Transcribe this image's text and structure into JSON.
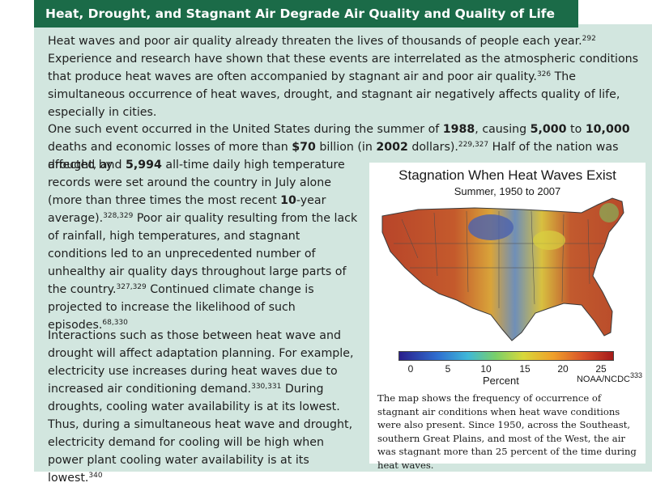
{
  "title": "Heat, Drought, and Stagnant Air Degrade Air Quality and Quality of Life",
  "p1": {
    "a": "Heat waves and poor air quality already threaten the lives of thousands of people each year.",
    "ref1": "292",
    "b": " Experience and research have shown that these events are interrelated as the atmospheric conditions that produce heat waves are often accompanied by stagnant air and poor air quality.",
    "ref2": "326",
    "c": " The simultaneous occurrence of heat waves, drought, and stagnant air negatively affects quality of life, especially in cities."
  },
  "p2": {
    "a": "One such event occurred in the United States during the summer of ",
    "year": "1988",
    "b": ", causing ",
    "deaths": "5,000",
    "c": " to ",
    "deaths2": "10,000",
    "d": " deaths and economic losses of more than ",
    "losses": "$70",
    "e": " billion (in ",
    "dollars_year": "2002",
    "f": " dollars).",
    "ref1": "229,327",
    "g": " Half of the nation was affected by",
    "h": "drought, and ",
    "records": "5,994",
    "i": " all-time daily high temperature records were set around the country in July alone (more than three times the most recent ",
    "span": "10",
    "j": "-year average).",
    "ref2": "328,329",
    "k": " Poor air quality resulting from the lack of rainfall, high temperatures, and stagnant conditions led to an unprecedented number of unhealthy air quality days throughout large parts of the country.",
    "ref3": "327,329",
    "l": " Continued climate change is projected to increase the likelihood of such episodes.",
    "ref4": "68,330"
  },
  "p3": {
    "a": "Interactions such as those between heat wave and drought will affect adaptation planning. For example, electricity use increases during heat waves due to increased air conditioning demand.",
    "ref1": "330,331",
    "b": " During droughts, cooling water availability is at its lowest. Thus, during a simultaneous heat wave and drought, electricity demand for cooling will be high when power plant cooling water availability is at its lowest.",
    "ref2": "340"
  },
  "figure": {
    "title": "Stagnation When Heat Waves Exist",
    "subtitle": "Summer, 1950 to 2007",
    "ticks": [
      "0",
      "5",
      "10",
      "15",
      "20",
      "25"
    ],
    "colorbar_label": "Percent",
    "credit": "NOAA/NCDC",
    "credit_ref": "333",
    "caption": "The map shows the frequency of occurrence of stagnant air conditions when heat wave conditions were also present. Since 1950, across the Southeast, southern Great Plains, and most of the West, the air was stagnant more than 25 percent of the time during heat waves.",
    "colors": {
      "low": "#2a1e8c",
      "mid": "#d8d83a",
      "high": "#a51a1a"
    }
  }
}
